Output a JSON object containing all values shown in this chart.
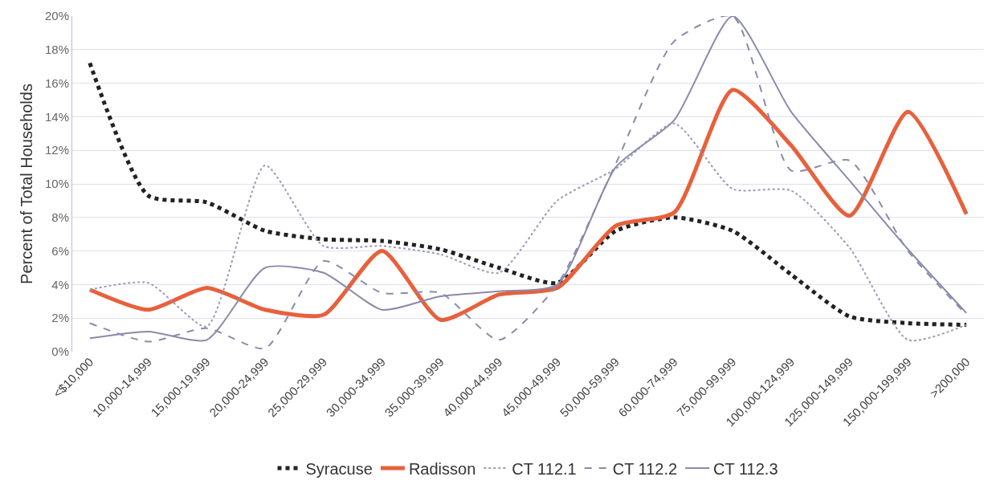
{
  "chart_data": {
    "type": "line",
    "ylabel": "Percent of Total Households",
    "categories": [
      "<$10,000",
      "10,000-14,999",
      "15,000-19,999",
      "20,000-24,999",
      "25,000-29,999",
      "30,000-34,999",
      "35,000-39,999",
      "40,000-44,999",
      "45,000-49,999",
      "50,000-59,999",
      "60,000-74,999",
      "75,000-99,999",
      "100,000-124,999",
      "125,000-149,999",
      "150,000-199,999",
      ">200,000"
    ],
    "series": [
      {
        "name": "Syracuse",
        "color": "#222222",
        "line_style": "dotted",
        "values": [
          17.2,
          9.3,
          8.9,
          7.2,
          6.7,
          6.6,
          6.1,
          5.0,
          4.1,
          7.2,
          8.0,
          7.2,
          4.6,
          2.1,
          1.7,
          1.6
        ]
      },
      {
        "name": "Radisson",
        "color": "#e8603c",
        "line_style": "solid",
        "values": [
          3.7,
          2.5,
          3.8,
          2.5,
          2.2,
          6.0,
          1.9,
          3.4,
          3.8,
          7.5,
          8.3,
          15.6,
          12.3,
          8.1,
          14.3,
          8.2
        ]
      },
      {
        "name": "CT 112.1",
        "color": "#9a9abb",
        "line_style": "dotted",
        "values": [
          3.7,
          4.1,
          1.5,
          11.1,
          6.3,
          6.3,
          5.8,
          4.7,
          9.0,
          10.9,
          13.6,
          9.7,
          9.6,
          6.2,
          0.7,
          1.6
        ]
      },
      {
        "name": "CT 112.2",
        "color": "#8a8aaa",
        "line_style": "dashed",
        "values": [
          1.7,
          0.6,
          1.4,
          0.2,
          5.4,
          3.5,
          3.5,
          0.7,
          4.0,
          11.2,
          18.5,
          20,
          10.8,
          11.4,
          6.0,
          2.2
        ]
      },
      {
        "name": "CT 112.3",
        "color": "#8a8aaa",
        "line_style": "solid",
        "values": [
          0.8,
          1.2,
          0.7,
          5.0,
          4.7,
          2.5,
          3.3,
          3.6,
          4.0,
          11.0,
          13.8,
          20,
          14.3,
          10.2,
          6.1,
          2.3
        ]
      }
    ],
    "ylim": [
      0,
      20
    ],
    "yticks": [
      {
        "value": 0,
        "label": "0%"
      },
      {
        "value": 2,
        "label": "2%"
      },
      {
        "value": 4,
        "label": "4%"
      },
      {
        "value": 6,
        "label": "6%"
      },
      {
        "value": 8,
        "label": "8%"
      },
      {
        "value": 10,
        "label": "10%"
      },
      {
        "value": 12,
        "label": "12%"
      },
      {
        "value": 14,
        "label": "14%"
      },
      {
        "value": 16,
        "label": "16%"
      },
      {
        "value": 18,
        "label": "18%"
      },
      {
        "value": 20,
        "label": "20%"
      }
    ],
    "grid": "y",
    "legend": "bottom",
    "marker": "none"
  }
}
